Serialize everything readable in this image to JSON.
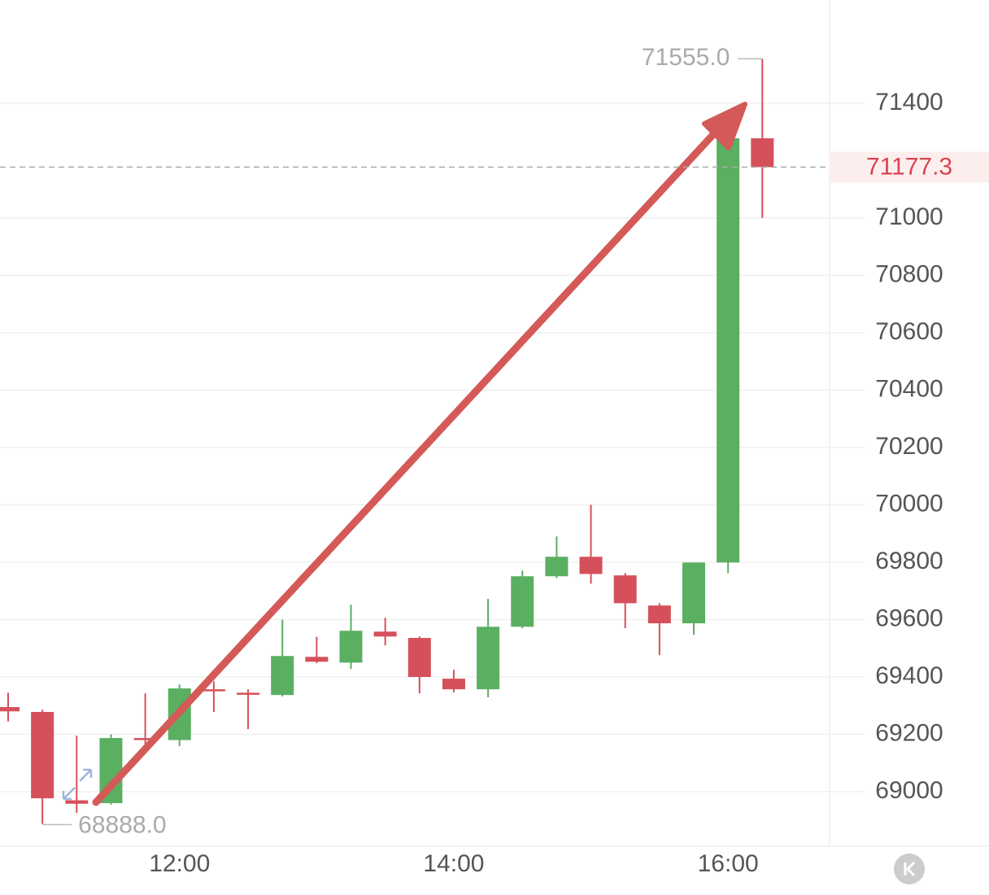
{
  "chart_data": {
    "type": "candlestick",
    "categories": [
      null,
      null,
      null,
      null,
      null,
      "12:00",
      null,
      null,
      null,
      null,
      null,
      null,
      null,
      "14:00",
      null,
      null,
      null,
      null,
      null,
      null,
      null,
      "16:00",
      null
    ],
    "open": [
      69295,
      69278,
      68970,
      68960,
      69187,
      69180,
      69357,
      69345,
      69337,
      69470,
      69450,
      69558,
      69536,
      69394,
      69357,
      69575,
      69751,
      69819,
      69754,
      69649,
      69587,
      69799,
      71278
    ],
    "high": [
      69345,
      69286,
      69195,
      69200,
      69343,
      69374,
      69385,
      69357,
      69600,
      69540,
      69652,
      69606,
      69541,
      69425,
      69672,
      69771,
      69890,
      70000,
      69762,
      69657,
      69799,
      71284,
      71555
    ],
    "low": [
      69245,
      68888,
      68926,
      68955,
      69167,
      69159,
      69278,
      69218,
      69332,
      69448,
      69428,
      69510,
      69343,
      69346,
      69329,
      69570,
      69745,
      69725,
      69570,
      69476,
      69547,
      69762,
      71000
    ],
    "close": [
      69280,
      68977,
      68958,
      69187,
      69180,
      69360,
      69355,
      69340,
      69473,
      69453,
      69561,
      69541,
      69400,
      69357,
      69575,
      69751,
      69819,
      69759,
      69657,
      69587,
      69799,
      71278,
      71177.3
    ],
    "up_color": "#5aaf61",
    "down_color": "#d5505a",
    "ylim": [
      68810,
      71760
    ],
    "yticks": [
      69000,
      69200,
      69400,
      69600,
      69800,
      70000,
      70200,
      70400,
      70600,
      70800,
      71000,
      71400
    ],
    "grid": true,
    "high_label": "71555.0",
    "low_label": "68888.0",
    "last_price": 71177.3
  }
}
